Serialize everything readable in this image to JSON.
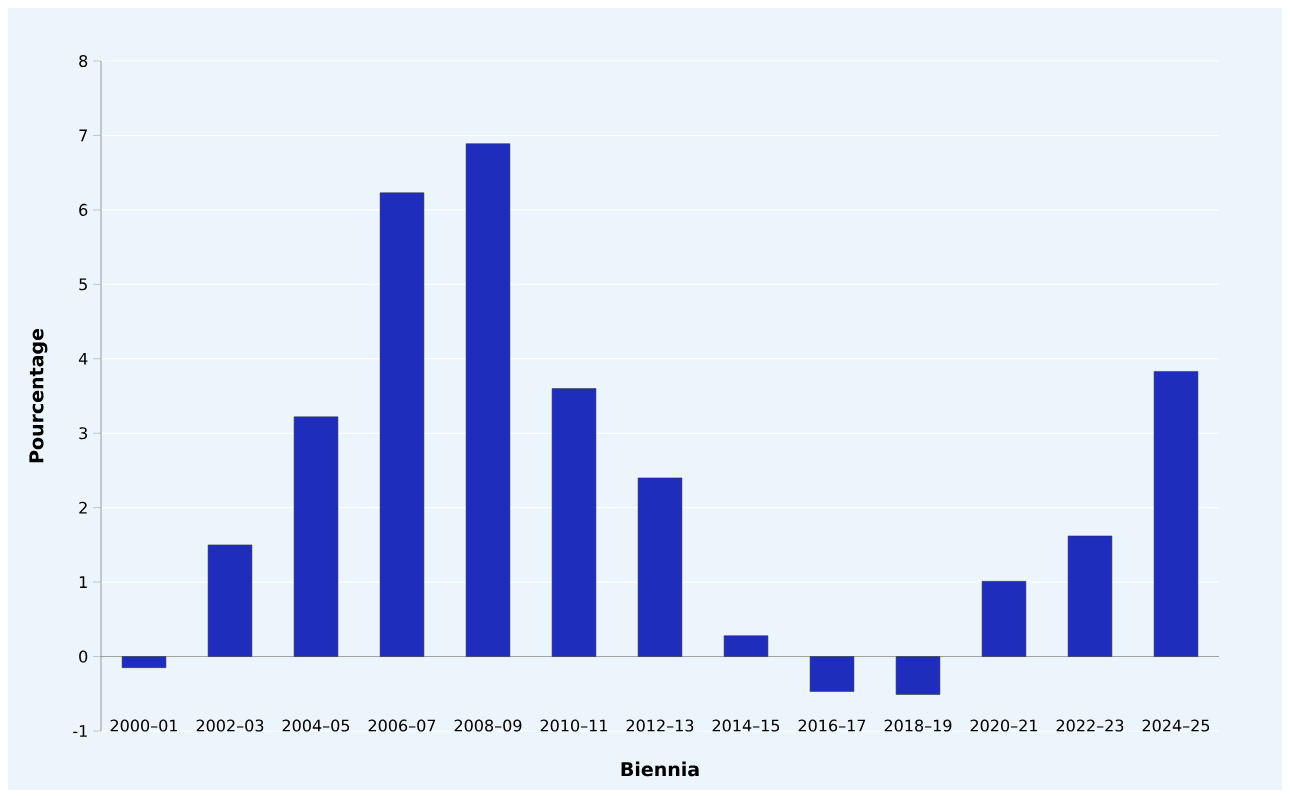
{
  "chart_data": {
    "type": "bar",
    "categories": [
      "2000–01",
      "2002–03",
      "2004–05",
      "2006–07",
      "2008–09",
      "2010–11",
      "2012–13",
      "2014–15",
      "2016–17",
      "2018–19",
      "2020–21",
      "2022–23",
      "2024–25"
    ],
    "values": [
      -0.15,
      1.5,
      3.22,
      6.23,
      6.89,
      3.6,
      2.4,
      0.28,
      -0.47,
      -0.51,
      1.01,
      1.62,
      3.83
    ],
    "color": "#1f2dbd",
    "xlabel": "Biennia",
    "ylabel": "Pourcentage",
    "ylim": [
      -1,
      8
    ],
    "yticks": [
      -1,
      0,
      1,
      2,
      3,
      4,
      5,
      6,
      7,
      8
    ],
    "grid": "y"
  }
}
